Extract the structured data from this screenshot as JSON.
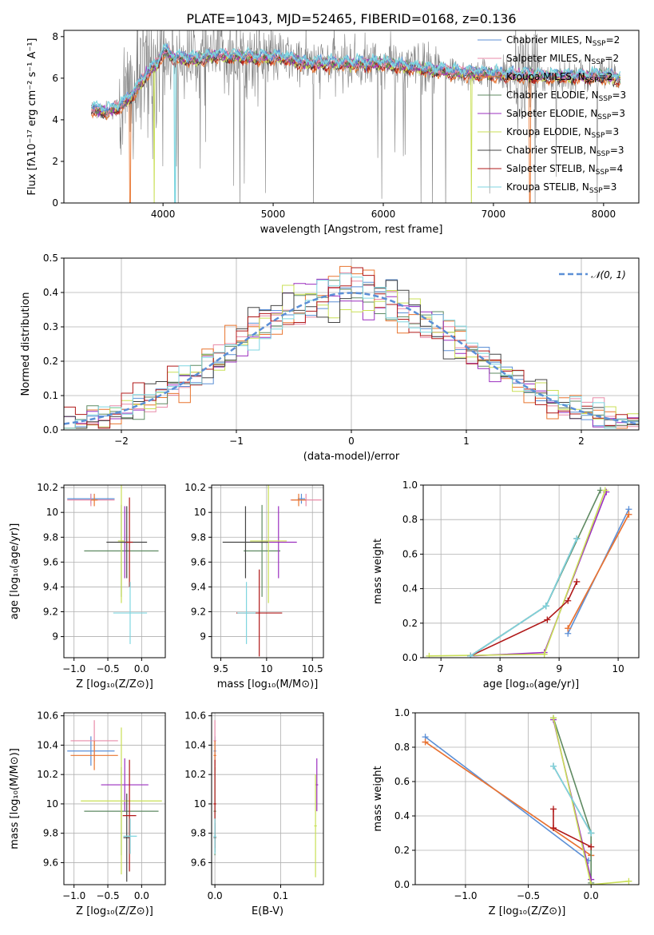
{
  "figure_title": "PLATE=1043, MJD=52465, FIBERID=0168, z=0.136",
  "colors": {
    "chabrier_miles": "#5b8fd6",
    "salpeter_miles": "#e88ba8",
    "kroupa_miles": "#e8742e",
    "chabrier_elodie": "#5f8a62",
    "salpeter_elodie": "#9b2fbf",
    "kroupa_elodie": "#c9df55",
    "chabrier_stelib": "#444444",
    "salpeter_stelib": "#b01818",
    "kroupa_stelib": "#7fd6e0",
    "data_grey": "#808080",
    "normal_fit": "#5b8fd6",
    "grid": "#b0b0b0"
  },
  "chart_data": [
    {
      "id": "spectrum",
      "type": "line",
      "title": "PLATE=1043, MJD=52465, FIBERID=0168, z=0.136",
      "xlabel": "wavelength [Angstrom, rest frame]",
      "ylabel": "Flux [fλ10⁻¹⁷ erg cm⁻² s⁻¹ A⁻¹]",
      "xlim": [
        3100,
        8320
      ],
      "ylim": [
        0,
        8.3
      ],
      "xticks": [
        4000,
        5000,
        6000,
        7000,
        8000
      ],
      "yticks": [
        0,
        2,
        4,
        6,
        8
      ],
      "grid": false,
      "legend_position": "right",
      "legend": [
        {
          "label": "Chabrier MILES, N",
          "sub": "SSP",
          "val": "=2",
          "color_key": "chabrier_miles"
        },
        {
          "label": "Salpeter MILES, N",
          "sub": "SSP",
          "val": "=2",
          "color_key": "salpeter_miles"
        },
        {
          "label": "Kroupa MILES, N",
          "sub": "SSP",
          "val": "=2",
          "color_key": "kroupa_miles"
        },
        {
          "label": "Chabrier ELODIE, N",
          "sub": "SSP",
          "val": "=3",
          "color_key": "chabrier_elodie"
        },
        {
          "label": "Salpeter ELODIE, N",
          "sub": "SSP",
          "val": "=3",
          "color_key": "salpeter_elodie"
        },
        {
          "label": "Kroupa ELODIE, N",
          "sub": "SSP",
          "val": "=3",
          "color_key": "kroupa_elodie"
        },
        {
          "label": "Chabrier STELIB, N",
          "sub": "SSP",
          "val": "=3",
          "color_key": "chabrier_stelib"
        },
        {
          "label": "Salpeter STELIB, N",
          "sub": "SSP",
          "val": "=4",
          "color_key": "salpeter_stelib"
        },
        {
          "label": "Kroupa STELIB, N",
          "sub": "SSP",
          "val": "=3",
          "color_key": "kroupa_stelib"
        }
      ],
      "continuum": [
        [
          3350,
          4.5
        ],
        [
          3500,
          4.4
        ],
        [
          3650,
          4.8
        ],
        [
          3750,
          5.4
        ],
        [
          3850,
          6.2
        ],
        [
          3950,
          6.7
        ],
        [
          4000,
          7.3
        ],
        [
          4100,
          7.0
        ],
        [
          4300,
          6.9
        ],
        [
          4500,
          7.1
        ],
        [
          4800,
          7.0
        ],
        [
          5100,
          7.0
        ],
        [
          5300,
          6.7
        ],
        [
          5600,
          6.7
        ],
        [
          6000,
          6.7
        ],
        [
          6300,
          6.5
        ],
        [
          6600,
          6.3
        ],
        [
          7000,
          6.2
        ],
        [
          7500,
          6.1
        ],
        [
          8000,
          6.1
        ],
        [
          8150,
          6.0
        ]
      ],
      "model_wavelength_range": [
        3350,
        8150
      ],
      "data_wavelength_range": [
        3350,
        8150
      ],
      "data_noise_start": 3600
    },
    {
      "id": "residuals",
      "type": "histogram",
      "xlabel": "(data-model)/error",
      "ylabel": "Normed distribution",
      "xlim": [
        -2.5,
        2.5
      ],
      "ylim": [
        0,
        0.5
      ],
      "xticks": [
        -2,
        -1,
        0,
        1,
        2
      ],
      "yticks": [
        0.0,
        0.1,
        0.2,
        0.3,
        0.4,
        0.5
      ],
      "grid": true,
      "legend_position": "top-right",
      "legend": [
        {
          "label": "𝒩(0, 1)",
          "color_key": "normal_fit",
          "style": "dashed"
        }
      ],
      "bin_width": 0.1,
      "normal_fit": {
        "mean": 0,
        "sigma": 1
      }
    },
    {
      "id": "z_age",
      "type": "errorbar",
      "xlabel": "Z [log₁₀(Z/Z⊙)]",
      "ylabel": "age  [log₁₀(age/yr)]",
      "xlim": [
        -1.15,
        0.35
      ],
      "ylim": [
        8.83,
        10.22
      ],
      "xticks": [
        -1.0,
        -0.5,
        0.0
      ],
      "yticks": [
        9.0,
        9.2,
        9.4,
        9.6,
        9.8,
        10.0,
        10.2
      ],
      "grid": true,
      "points": [
        {
          "x": -0.75,
          "xerr": 0.35,
          "y": 10.11,
          "yerr": 0.04,
          "color_key": "chabrier_miles"
        },
        {
          "x": -0.75,
          "xerr": 0.35,
          "y": 10.1,
          "yerr": 0.05,
          "color_key": "salpeter_miles"
        },
        {
          "x": -0.7,
          "xerr": 0.05,
          "y": 10.1,
          "yerr": 0.05,
          "color_key": "kroupa_miles"
        },
        {
          "x": -0.3,
          "xerr": 0.55,
          "y": 9.69,
          "yerr": 0.37,
          "color_key": "chabrier_elodie"
        },
        {
          "x": -0.25,
          "xerr": 0.05,
          "y": 9.76,
          "yerr": 0.29,
          "color_key": "salpeter_elodie"
        },
        {
          "x": -0.3,
          "xerr": 0.05,
          "y": 9.77,
          "yerr": 0.5,
          "color_key": "kroupa_elodie"
        },
        {
          "x": -0.22,
          "xerr": 0.3,
          "y": 9.76,
          "yerr": 0.29,
          "color_key": "chabrier_stelib"
        },
        {
          "x": -0.18,
          "xerr": 0.05,
          "y": 9.76,
          "yerr": 0.36,
          "color_key": "salpeter_stelib"
        },
        {
          "x": -0.17,
          "xerr": 0.25,
          "y": 9.19,
          "yerr": 0.25,
          "color_key": "kroupa_stelib"
        }
      ]
    },
    {
      "id": "mass_age",
      "type": "errorbar",
      "xlabel": "mass [log₁₀(M/M⊙)]",
      "ylabel": "",
      "xlim": [
        9.4,
        10.62
      ],
      "ylim": [
        8.83,
        10.22
      ],
      "xticks": [
        9.5,
        10.0,
        10.5
      ],
      "yticks": [
        9.0,
        9.2,
        9.4,
        9.6,
        9.8,
        10.0,
        10.2
      ],
      "grid": true,
      "points": [
        {
          "x": 10.38,
          "xerr": 0.04,
          "y": 10.11,
          "yerr": 0.04,
          "color_key": "chabrier_miles"
        },
        {
          "x": 10.43,
          "xerr": 0.17,
          "y": 10.1,
          "yerr": 0.05,
          "color_key": "salpeter_miles"
        },
        {
          "x": 10.35,
          "xerr": 0.08,
          "y": 10.1,
          "yerr": 0.05,
          "color_key": "kroupa_miles"
        },
        {
          "x": 9.95,
          "xerr": 0.2,
          "y": 9.69,
          "yerr": 0.37,
          "color_key": "chabrier_elodie"
        },
        {
          "x": 10.13,
          "xerr": 0.2,
          "y": 9.76,
          "yerr": 0.29,
          "color_key": "salpeter_elodie"
        },
        {
          "x": 10.02,
          "xerr": 0.2,
          "y": 9.77,
          "yerr": 0.5,
          "color_key": "kroupa_elodie"
        },
        {
          "x": 9.77,
          "xerr": 0.25,
          "y": 9.76,
          "yerr": 0.29,
          "color_key": "chabrier_stelib"
        },
        {
          "x": 9.92,
          "xerr": 0.25,
          "y": 9.19,
          "yerr": 0.35,
          "color_key": "salpeter_stelib"
        },
        {
          "x": 9.78,
          "xerr": 0.1,
          "y": 9.19,
          "yerr": 0.25,
          "color_key": "kroupa_stelib"
        }
      ]
    },
    {
      "id": "age_weight",
      "type": "line",
      "xlabel": "age  [log₁₀(age/yr)]",
      "ylabel": "mass weight",
      "xlim": [
        6.7,
        10.35
      ],
      "ylim": [
        0,
        1.0
      ],
      "xticks": [
        7,
        8,
        9,
        10
      ],
      "yticks": [
        0.0,
        0.2,
        0.4,
        0.6,
        0.8,
        1.0
      ],
      "grid": true,
      "series": [
        {
          "color_key": "chabrier_miles",
          "x": [
            9.15,
            10.18
          ],
          "y": [
            0.14,
            0.86
          ]
        },
        {
          "color_key": "salpeter_miles",
          "x": [
            9.15,
            10.18
          ],
          "y": [
            0.17,
            0.83
          ]
        },
        {
          "color_key": "kroupa_miles",
          "x": [
            9.15,
            10.18
          ],
          "y": [
            0.17,
            0.83
          ]
        },
        {
          "color_key": "chabrier_elodie",
          "x": [
            7.5,
            8.78,
            9.7
          ],
          "y": [
            0.01,
            0.3,
            0.97
          ]
        },
        {
          "color_key": "salpeter_elodie",
          "x": [
            7.5,
            8.75,
            9.8
          ],
          "y": [
            0.01,
            0.03,
            0.96
          ]
        },
        {
          "color_key": "kroupa_elodie",
          "x": [
            6.8,
            8.75,
            9.78
          ],
          "y": [
            0.01,
            0.02,
            0.97
          ]
        },
        {
          "color_key": "chabrier_stelib",
          "x": [
            7.5,
            8.78,
            9.3
          ],
          "y": [
            0.01,
            0.3,
            0.69
          ]
        },
        {
          "color_key": "salpeter_stelib",
          "x": [
            7.5,
            8.8,
            9.15,
            9.3
          ],
          "y": [
            0.01,
            0.22,
            0.33,
            0.44
          ]
        },
        {
          "color_key": "kroupa_stelib",
          "x": [
            7.5,
            8.78,
            9.3
          ],
          "y": [
            0.01,
            0.3,
            0.69
          ]
        }
      ]
    },
    {
      "id": "z_mass",
      "type": "errorbar",
      "xlabel": "Z [log₁₀(Z/Z⊙)]",
      "ylabel": "mass [log₁₀(M/M⊙)]",
      "xlim": [
        -1.15,
        0.35
      ],
      "ylim": [
        9.45,
        10.62
      ],
      "xticks": [
        -1.0,
        -0.5,
        0.0
      ],
      "yticks": [
        9.6,
        9.8,
        10.0,
        10.2,
        10.4,
        10.6
      ],
      "grid": true,
      "points": [
        {
          "x": -0.75,
          "xerr": 0.35,
          "y": 10.36,
          "yerr": 0.1,
          "color_key": "chabrier_miles"
        },
        {
          "x": -0.7,
          "xerr": 0.35,
          "y": 10.43,
          "yerr": 0.14,
          "color_key": "salpeter_miles"
        },
        {
          "x": -0.7,
          "xerr": 0.35,
          "y": 10.33,
          "yerr": 0.1,
          "color_key": "kroupa_miles"
        },
        {
          "x": -0.3,
          "xerr": 0.55,
          "y": 9.95,
          "yerr": 0.3,
          "color_key": "chabrier_elodie"
        },
        {
          "x": -0.25,
          "xerr": 0.35,
          "y": 10.13,
          "yerr": 0.18,
          "color_key": "salpeter_elodie"
        },
        {
          "x": -0.3,
          "xerr": 0.6,
          "y": 10.02,
          "yerr": 0.5,
          "color_key": "kroupa_elodie"
        },
        {
          "x": -0.22,
          "xerr": 0.05,
          "y": 9.77,
          "yerr": 0.3,
          "color_key": "chabrier_stelib"
        },
        {
          "x": -0.18,
          "xerr": 0.1,
          "y": 9.92,
          "yerr": 0.38,
          "color_key": "salpeter_stelib"
        },
        {
          "x": -0.17,
          "xerr": 0.1,
          "y": 9.78,
          "yerr": 0.12,
          "color_key": "kroupa_stelib"
        }
      ]
    },
    {
      "id": "ebv_mass",
      "type": "errorbar",
      "xlabel": "E(B-V)",
      "ylabel": "",
      "xlim": [
        -0.005,
        0.165
      ],
      "ylim": [
        9.45,
        10.62
      ],
      "xticks": [
        0.0,
        0.1
      ],
      "yticks": [
        9.6,
        9.8,
        10.0,
        10.2,
        10.4,
        10.6
      ],
      "grid": true,
      "points": [
        {
          "x": 0.0,
          "xerr": 0.002,
          "y": 10.36,
          "yerr": 0.1,
          "color_key": "chabrier_miles"
        },
        {
          "x": 0.0,
          "xerr": 0.002,
          "y": 10.43,
          "yerr": 0.14,
          "color_key": "salpeter_miles"
        },
        {
          "x": 0.0,
          "xerr": 0.002,
          "y": 10.33,
          "yerr": 0.1,
          "color_key": "kroupa_miles"
        },
        {
          "x": 0.0,
          "xerr": 0.002,
          "y": 9.95,
          "yerr": 0.3,
          "color_key": "chabrier_elodie"
        },
        {
          "x": 0.155,
          "xerr": 0.002,
          "y": 10.13,
          "yerr": 0.18,
          "color_key": "salpeter_elodie"
        },
        {
          "x": 0.153,
          "xerr": 0.002,
          "y": 9.85,
          "yerr": 0.35,
          "color_key": "kroupa_elodie"
        },
        {
          "x": 0.0,
          "xerr": 0.002,
          "y": 9.77,
          "yerr": 0.1,
          "color_key": "chabrier_stelib"
        },
        {
          "x": 0.0,
          "xerr": 0.002,
          "y": 10.0,
          "yerr": 0.3,
          "color_key": "salpeter_stelib"
        },
        {
          "x": 0.0,
          "xerr": 0.002,
          "y": 9.78,
          "yerr": 0.12,
          "color_key": "kroupa_stelib"
        }
      ]
    },
    {
      "id": "z_weight",
      "type": "line",
      "xlabel": "Z [log₁₀(Z/Z⊙)]",
      "ylabel": "mass weight",
      "xlim": [
        -1.4,
        0.38
      ],
      "ylim": [
        0,
        1.0
      ],
      "xticks": [
        -1.0,
        -0.5,
        0.0
      ],
      "yticks": [
        0.0,
        0.2,
        0.4,
        0.6,
        0.8,
        1.0
      ],
      "grid": true,
      "series": [
        {
          "color_key": "chabrier_miles",
          "x": [
            -1.32,
            -0.02
          ],
          "y": [
            0.86,
            0.14
          ]
        },
        {
          "color_key": "salpeter_miles",
          "x": [
            -1.32,
            0.0
          ],
          "y": [
            0.83,
            0.17
          ]
        },
        {
          "color_key": "kroupa_miles",
          "x": [
            -1.32,
            0.0
          ],
          "y": [
            0.83,
            0.17
          ]
        },
        {
          "color_key": "chabrier_elodie",
          "x": [
            -0.3,
            0.0,
            0.0
          ],
          "y": [
            0.97,
            0.3,
            0.01
          ]
        },
        {
          "color_key": "salpeter_elodie",
          "x": [
            -0.3,
            0.0
          ],
          "y": [
            0.96,
            0.03
          ]
        },
        {
          "color_key": "kroupa_elodie",
          "x": [
            -0.3,
            0.0,
            0.3
          ],
          "y": [
            0.97,
            0.0,
            0.02
          ]
        },
        {
          "color_key": "chabrier_stelib",
          "x": [
            -0.3,
            0.0
          ],
          "y": [
            0.69,
            0.3
          ]
        },
        {
          "color_key": "salpeter_stelib",
          "x": [
            -0.3,
            -0.3,
            0.0
          ],
          "y": [
            0.44,
            0.33,
            0.22
          ]
        },
        {
          "color_key": "kroupa_stelib",
          "x": [
            -0.3,
            0.0
          ],
          "y": [
            0.69,
            0.3
          ]
        }
      ]
    }
  ]
}
